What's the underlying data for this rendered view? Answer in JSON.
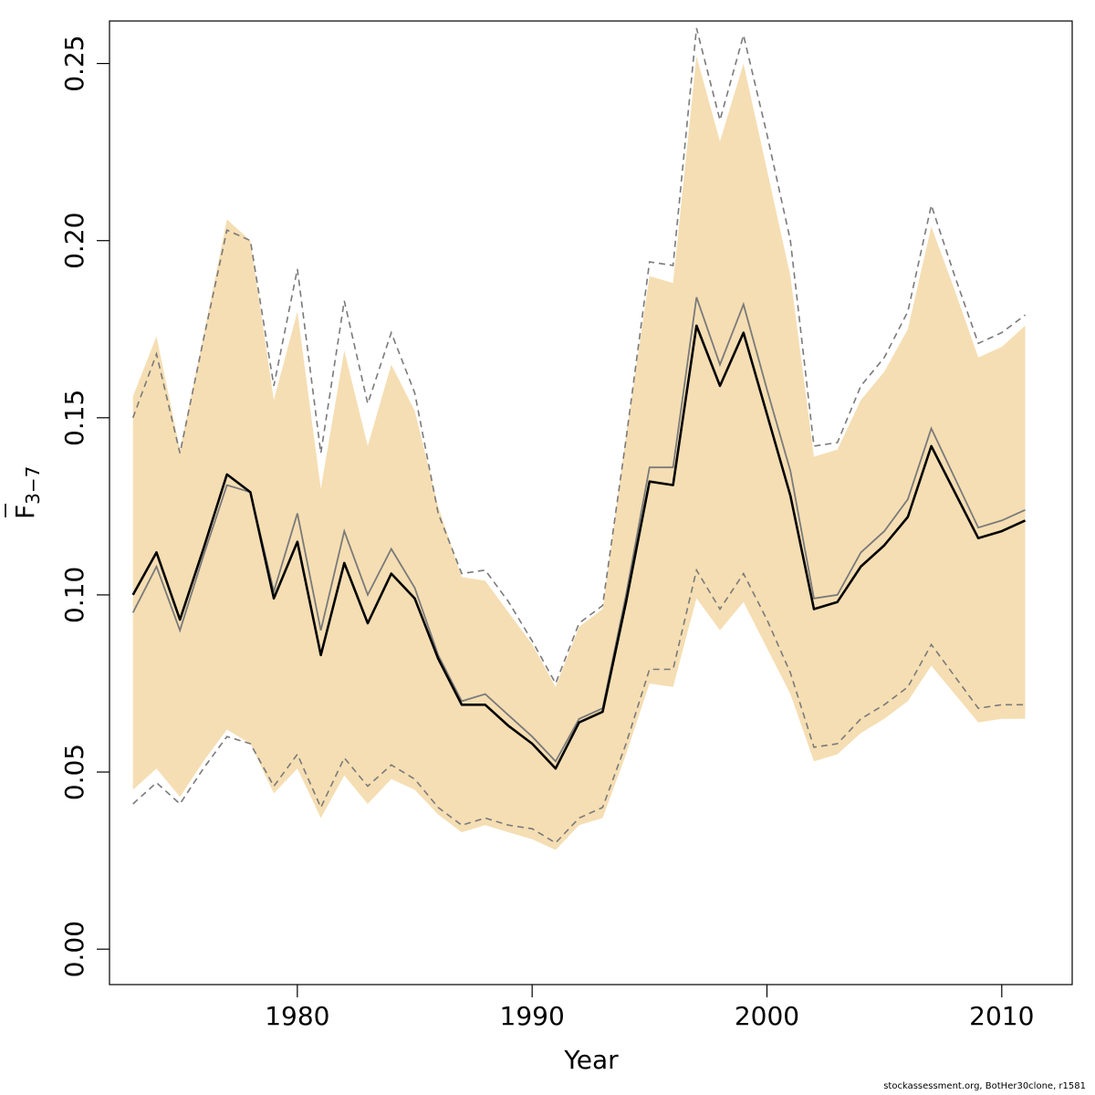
{
  "chart_data": {
    "type": "line",
    "xlabel": "Year",
    "ylabel_main": "F",
    "ylabel_sub": "3−7",
    "xlim": [
      1972,
      2013
    ],
    "ylim": [
      -0.01,
      0.262
    ],
    "xticks": [
      1980,
      1990,
      2000,
      2010
    ],
    "yticks": [
      "0.00",
      "0.05",
      "0.10",
      "0.15",
      "0.20",
      "0.25"
    ],
    "colors": {
      "band": "#f5deb3",
      "main_line": "#000000",
      "secondary_line": "#7a7a7a",
      "dashed_line": "#7a7a7a",
      "frame": "#000000"
    },
    "x": [
      1973,
      1974,
      1975,
      1976,
      1977,
      1978,
      1979,
      1980,
      1981,
      1982,
      1983,
      1984,
      1985,
      1986,
      1987,
      1988,
      1989,
      1990,
      1991,
      1992,
      1993,
      1994,
      1995,
      1996,
      1997,
      1998,
      1999,
      2000,
      2001,
      2002,
      2003,
      2004,
      2005,
      2006,
      2007,
      2008,
      2009,
      2010,
      2011
    ],
    "series": [
      {
        "role": "band_upper",
        "values": [
          0.156,
          0.173,
          0.141,
          0.173,
          0.206,
          0.2,
          0.155,
          0.18,
          0.13,
          0.169,
          0.142,
          0.165,
          0.152,
          0.125,
          0.105,
          0.104,
          0.095,
          0.086,
          0.074,
          0.091,
          0.096,
          0.145,
          0.19,
          0.188,
          0.252,
          0.228,
          0.25,
          0.22,
          0.19,
          0.139,
          0.141,
          0.155,
          0.163,
          0.175,
          0.204,
          0.186,
          0.167,
          0.17,
          0.176
        ]
      },
      {
        "role": "band_lower",
        "values": [
          0.045,
          0.051,
          0.043,
          0.053,
          0.062,
          0.058,
          0.044,
          0.051,
          0.037,
          0.049,
          0.041,
          0.048,
          0.045,
          0.038,
          0.033,
          0.035,
          0.033,
          0.031,
          0.028,
          0.035,
          0.037,
          0.055,
          0.075,
          0.074,
          0.099,
          0.09,
          0.098,
          0.085,
          0.072,
          0.053,
          0.055,
          0.061,
          0.065,
          0.07,
          0.08,
          0.072,
          0.064,
          0.065,
          0.065
        ]
      },
      {
        "role": "estimate",
        "values": [
          0.1,
          0.112,
          0.093,
          0.113,
          0.134,
          0.129,
          0.099,
          0.115,
          0.083,
          0.109,
          0.092,
          0.106,
          0.099,
          0.082,
          0.069,
          0.069,
          0.063,
          0.058,
          0.051,
          0.064,
          0.067,
          0.098,
          0.132,
          0.131,
          0.176,
          0.159,
          0.174,
          0.151,
          0.128,
          0.096,
          0.098,
          0.108,
          0.114,
          0.122,
          0.142,
          0.129,
          0.116,
          0.118,
          0.121
        ]
      },
      {
        "role": "estimate_alt",
        "values": [
          0.095,
          0.108,
          0.09,
          0.111,
          0.131,
          0.129,
          0.101,
          0.123,
          0.09,
          0.118,
          0.1,
          0.113,
          0.102,
          0.083,
          0.07,
          0.072,
          0.066,
          0.06,
          0.053,
          0.065,
          0.068,
          0.1,
          0.136,
          0.136,
          0.184,
          0.165,
          0.182,
          0.158,
          0.135,
          0.099,
          0.1,
          0.112,
          0.118,
          0.127,
          0.147,
          0.133,
          0.119,
          0.121,
          0.124
        ]
      },
      {
        "role": "dashed_upper",
        "values": [
          0.15,
          0.168,
          0.14,
          0.172,
          0.203,
          0.2,
          0.159,
          0.192,
          0.14,
          0.183,
          0.154,
          0.174,
          0.157,
          0.123,
          0.106,
          0.107,
          0.098,
          0.087,
          0.075,
          0.092,
          0.097,
          0.144,
          0.194,
          0.193,
          0.26,
          0.234,
          0.258,
          0.23,
          0.2,
          0.142,
          0.143,
          0.159,
          0.167,
          0.18,
          0.21,
          0.19,
          0.171,
          0.174,
          0.179
        ]
      },
      {
        "role": "dashed_lower",
        "values": [
          0.041,
          0.047,
          0.041,
          0.051,
          0.06,
          0.058,
          0.046,
          0.055,
          0.04,
          0.054,
          0.046,
          0.052,
          0.048,
          0.04,
          0.035,
          0.037,
          0.035,
          0.034,
          0.03,
          0.037,
          0.04,
          0.058,
          0.079,
          0.079,
          0.107,
          0.096,
          0.106,
          0.093,
          0.078,
          0.057,
          0.058,
          0.065,
          0.069,
          0.074,
          0.086,
          0.077,
          0.068,
          0.069,
          0.069
        ]
      }
    ]
  },
  "footer": "stockassessment.org, BotHer30clone, r1581"
}
